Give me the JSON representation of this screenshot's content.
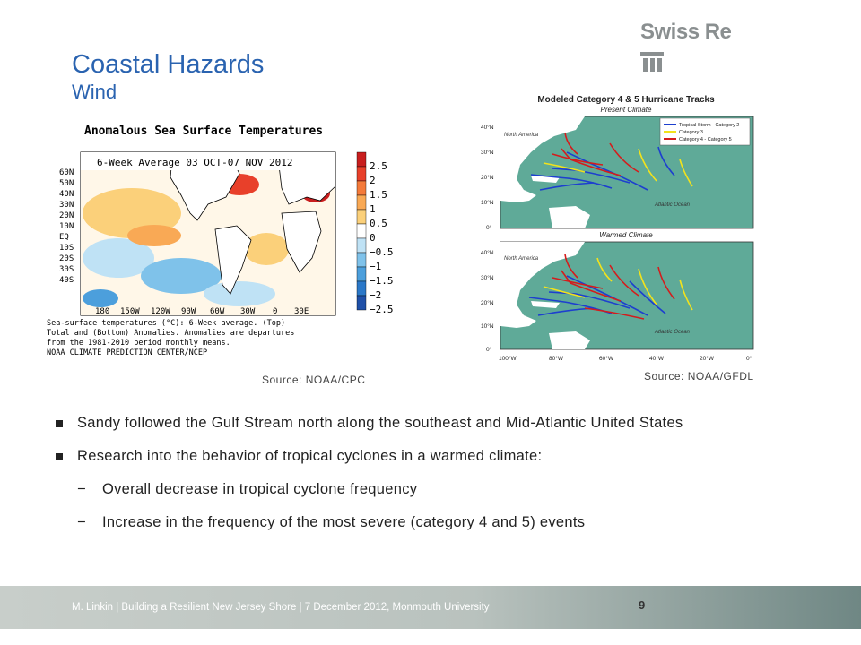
{
  "title": "Coastal Hazards",
  "subtitle": "Wind",
  "logo": {
    "text": "Swiss Re",
    "mark_icon": "swiss-re-mark-icon"
  },
  "sst_figure": {
    "title": "Anomalous Sea Surface Temperatures",
    "panel_title": "6-Week Average 03 OCT-07 NOV 2012",
    "lat_labels": [
      "60N",
      "50N",
      "40N",
      "30N",
      "20N",
      "10N",
      "EQ",
      "10S",
      "20S",
      "30S",
      "40S"
    ],
    "lon_labels": [
      "180",
      "150W",
      "120W",
      "90W",
      "60W",
      "30W",
      "0",
      "30E"
    ],
    "colorbar_labels": [
      "2.5",
      "2",
      "1.5",
      "1",
      "0.5",
      "0",
      "−0.5",
      "−1",
      "−1.5",
      "−2",
      "−2.5"
    ],
    "colorbar_colors": [
      "#c81e1e",
      "#e8402a",
      "#f47a3a",
      "#f9a955",
      "#fbd07a",
      "#ffffff",
      "#bfe2f5",
      "#7fc2ea",
      "#4c9fdc",
      "#2b78c8",
      "#1f50a8"
    ],
    "caption": [
      "Sea-surface temperatures (°C): 6-Week average. (Top)",
      "Total and (Bottom) Anomalies. Anomalies are departures",
      "from the 1981-2010 period monthly means."
    ],
    "credit": "NOAA CLIMATE PREDICTION CENTER/NCEP",
    "source": "Source: NOAA/CPC"
  },
  "tracks_figure": {
    "title": "Modeled Category 4 & 5 Hurricane Tracks",
    "top_panel": "Present Climate",
    "bottom_panel": "Warmed Climate",
    "legend": [
      "Tropical Storm - Category 2",
      "Category 3",
      "Category 4 - Category 5"
    ],
    "legend_colors": [
      "#1d3fcf",
      "#f2e21c",
      "#d41c1c"
    ],
    "region_labels": {
      "north_america": "North America",
      "atlantic": "Atlantic Ocean"
    },
    "lat_labels": [
      "40°N",
      "30°N",
      "20°N",
      "10°N",
      "0°"
    ],
    "lon_labels": [
      "100°W",
      "80°W",
      "60°W",
      "40°W",
      "20°W",
      "0°"
    ],
    "ocean_color": "#5faa98",
    "land_color": "#ffffff",
    "source": "Source: NOAA/GFDL"
  },
  "bullets": [
    "Sandy followed the Gulf Stream north along the southeast and Mid-Atlantic United States",
    "Research into the behavior of tropical cyclones in a warmed climate:"
  ],
  "sub_bullets": [
    "Overall decrease in tropical cyclone frequency",
    "Increase in the frequency of the most severe (category 4 and 5) events"
  ],
  "dash": "−",
  "footer": {
    "text": "M. Linkin | Building a Resilient New Jersey Shore | 7 December 2012, Monmouth University",
    "page_number": "9"
  }
}
